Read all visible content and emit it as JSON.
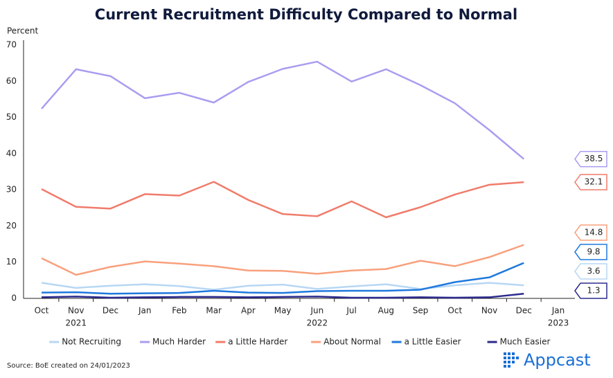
{
  "chart_data": {
    "type": "line",
    "title": "Current Recruitment Difficulty Compared to Normal",
    "y_axis_label": "Percent",
    "categories": [
      "Oct",
      "Nov",
      "Dec",
      "Jan",
      "Feb",
      "Mar",
      "Apr",
      "May",
      "Jun",
      "Jul",
      "Aug",
      "Sep",
      "Oct",
      "Nov",
      "Dec",
      "Jan"
    ],
    "category_years": [
      null,
      "2021",
      null,
      null,
      null,
      null,
      null,
      null,
      "2022",
      null,
      null,
      null,
      null,
      null,
      null,
      "2023"
    ],
    "ylim": [
      0,
      70
    ],
    "yticks": [
      0,
      10,
      20,
      30,
      40,
      50,
      60,
      70
    ],
    "grid": false,
    "end_labels": true,
    "legend": "bottom",
    "series": [
      {
        "name": "Not Recruiting",
        "color": "#b7d7f4",
        "values": [
          4.3,
          2.9,
          3.5,
          3.9,
          3.4,
          2.4,
          3.5,
          3.8,
          2.6,
          3.3,
          3.9,
          2.6,
          3.6,
          4.3,
          3.6,
          null
        ]
      },
      {
        "name": "Much Harder",
        "color": "#a99df0",
        "values": [
          52.4,
          63.3,
          61.4,
          55.3,
          56.8,
          54.1,
          59.8,
          63.4,
          65.4,
          59.9,
          63.3,
          58.9,
          53.9,
          46.5,
          38.5,
          null
        ]
      },
      {
        "name": "a Little Harder",
        "color": "#f07b6b",
        "values": [
          30.2,
          25.3,
          24.8,
          28.8,
          28.4,
          32.2,
          27.2,
          23.3,
          22.7,
          26.8,
          22.4,
          25.2,
          28.7,
          31.4,
          32.1,
          null
        ]
      },
      {
        "name": "About Normal",
        "color": "#f8a07c",
        "values": [
          11.1,
          6.5,
          8.7,
          10.2,
          9.6,
          8.9,
          7.7,
          7.6,
          6.8,
          7.7,
          8.1,
          10.4,
          8.9,
          11.4,
          14.8,
          null
        ]
      },
      {
        "name": "a Little Easier",
        "color": "#1f78de",
        "values": [
          1.6,
          1.7,
          1.3,
          1.4,
          1.5,
          2.1,
          1.6,
          1.5,
          2.0,
          2.1,
          2.1,
          2.4,
          4.5,
          5.8,
          9.8,
          null
        ]
      },
      {
        "name": "Much Easier",
        "color": "#2b2a8e",
        "values": [
          0.3,
          0.5,
          0.2,
          0.3,
          0.4,
          0.4,
          0.3,
          0.4,
          0.5,
          0.2,
          0.2,
          0.3,
          0.2,
          0.3,
          1.3,
          null
        ]
      }
    ]
  },
  "footer": {
    "source": "Source: BoE created on 24/01/2023",
    "brand": "Appcast"
  }
}
